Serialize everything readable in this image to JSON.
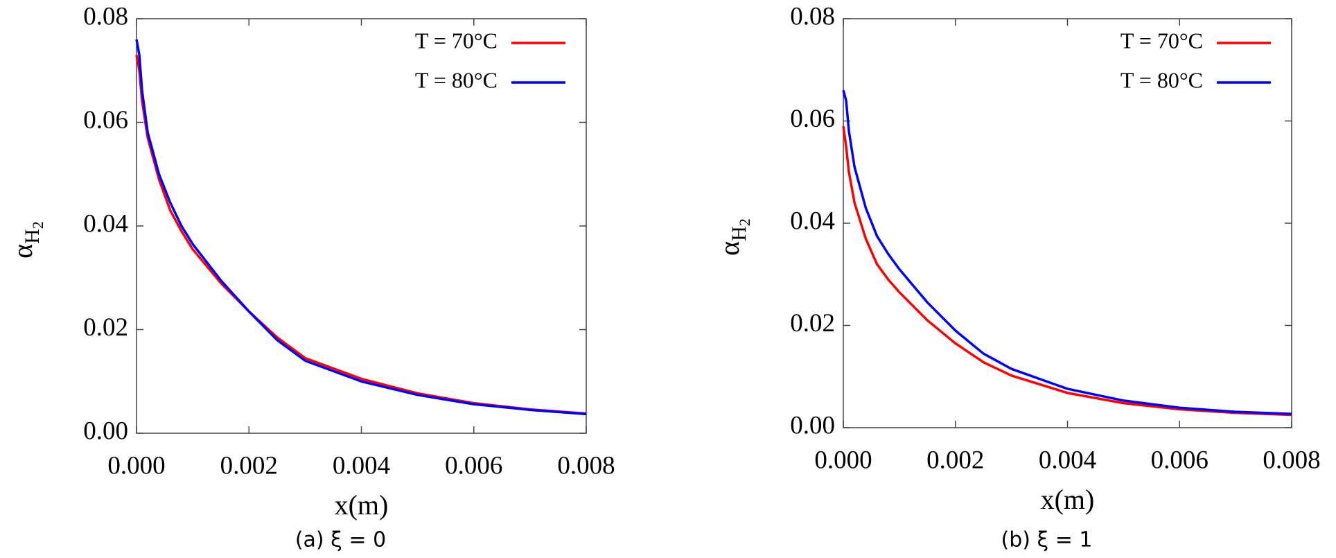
{
  "chart_data": [
    {
      "type": "line",
      "xlabel": "x(m)",
      "ylabel": "α",
      "ylabel_sub": "H",
      "ylabel_subsub": "2",
      "caption": "(a) ξ = 0",
      "x": [
        0,
        5e-05,
        0.0001,
        0.0002,
        0.0004,
        0.0006,
        0.0008,
        0.001,
        0.0015,
        0.002,
        0.0025,
        0.003,
        0.004,
        0.005,
        0.006,
        0.007,
        0.008
      ],
      "series": [
        {
          "name": "T = 70°C",
          "color": "#ff0000",
          "values": [
            0.073,
            0.07,
            0.064,
            0.057,
            0.049,
            0.043,
            0.039,
            0.0355,
            0.029,
            0.0235,
            0.0185,
            0.0145,
            0.0105,
            0.0077,
            0.0058,
            0.0046,
            0.0038
          ]
        },
        {
          "name": "T = 80°C",
          "color": "#0000ff",
          "values": [
            0.076,
            0.073,
            0.066,
            0.058,
            0.05,
            0.0445,
            0.04,
            0.0365,
            0.0295,
            0.0235,
            0.018,
            0.014,
            0.01,
            0.0074,
            0.0056,
            0.0045,
            0.0037
          ]
        }
      ],
      "xlim": [
        0,
        0.008
      ],
      "ylim": [
        0,
        0.08
      ],
      "xticks": [
        {
          "value": 0,
          "label": "0.000"
        },
        {
          "value": 0.002,
          "label": "0.002"
        },
        {
          "value": 0.004,
          "label": "0.004"
        },
        {
          "value": 0.006,
          "label": "0.006"
        },
        {
          "value": 0.008,
          "label": "0.008"
        }
      ],
      "yticks": [
        {
          "value": 0,
          "label": "0.00"
        },
        {
          "value": 0.02,
          "label": "0.02"
        },
        {
          "value": 0.04,
          "label": "0.04"
        },
        {
          "value": 0.06,
          "label": "0.06"
        },
        {
          "value": 0.08,
          "label": "0.08"
        }
      ],
      "legend": "upper right"
    },
    {
      "type": "line",
      "xlabel": "x(m)",
      "ylabel": "α",
      "ylabel_sub": "H",
      "ylabel_subsub": "2",
      "caption": "(b) ξ = 1",
      "x": [
        0,
        5e-05,
        0.0001,
        0.0002,
        0.0004,
        0.0006,
        0.0008,
        0.001,
        0.0015,
        0.002,
        0.0025,
        0.003,
        0.004,
        0.005,
        0.006,
        0.007,
        0.008
      ],
      "series": [
        {
          "name": "T = 70°C",
          "color": "#ff0000",
          "values": [
            0.059,
            0.055,
            0.05,
            0.044,
            0.037,
            0.032,
            0.029,
            0.0265,
            0.021,
            0.0165,
            0.0128,
            0.0102,
            0.0068,
            0.0048,
            0.0036,
            0.0029,
            0.0025
          ]
        },
        {
          "name": "T = 80°C",
          "color": "#0000ff",
          "values": [
            0.066,
            0.064,
            0.058,
            0.051,
            0.043,
            0.0375,
            0.034,
            0.031,
            0.0245,
            0.019,
            0.0145,
            0.0115,
            0.0076,
            0.0053,
            0.0039,
            0.0031,
            0.0027
          ]
        }
      ],
      "xlim": [
        0,
        0.008
      ],
      "ylim": [
        0,
        0.08
      ],
      "xticks": [
        {
          "value": 0,
          "label": "0.000"
        },
        {
          "value": 0.002,
          "label": "0.002"
        },
        {
          "value": 0.004,
          "label": "0.004"
        },
        {
          "value": 0.006,
          "label": "0.006"
        },
        {
          "value": 0.008,
          "label": "0.008"
        }
      ],
      "yticks": [
        {
          "value": 0,
          "label": "0.00"
        },
        {
          "value": 0.02,
          "label": "0.02"
        },
        {
          "value": 0.04,
          "label": "0.04"
        },
        {
          "value": 0.06,
          "label": "0.06"
        },
        {
          "value": 0.08,
          "label": "0.08"
        }
      ],
      "legend": "upper right"
    }
  ]
}
